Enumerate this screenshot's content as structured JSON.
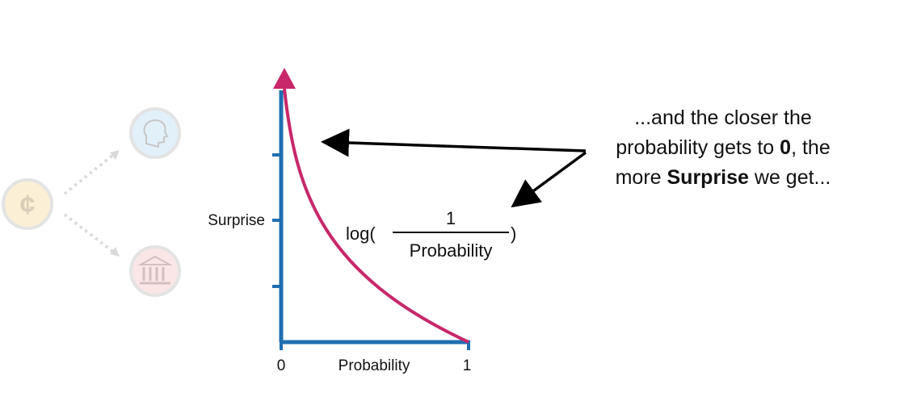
{
  "graph": {
    "y_label": "Surprise",
    "x_label": "Probability",
    "x_tick_start": "0",
    "x_tick_end": "1",
    "axis_color": "#1f6fb0",
    "curve_color": "#c8286a"
  },
  "formula": {
    "prefix": "log(",
    "numerator": "1",
    "denominator": "Probability",
    "suffix": ")"
  },
  "callout": {
    "line1": "...and the closer the",
    "line2_pre": "probability gets to ",
    "line2_bold": "0",
    "line2_post": ", the",
    "line3_pre": "more ",
    "line3_bold": "Surprise",
    "line3_post": " we get..."
  },
  "faded_icons": [
    {
      "name": "coin-icon",
      "symbol": "¢",
      "color": "#f2d08a"
    },
    {
      "name": "head-icon",
      "color": "#a8d4f0"
    },
    {
      "name": "bank-icon",
      "color": "#f0b4b4"
    }
  ]
}
